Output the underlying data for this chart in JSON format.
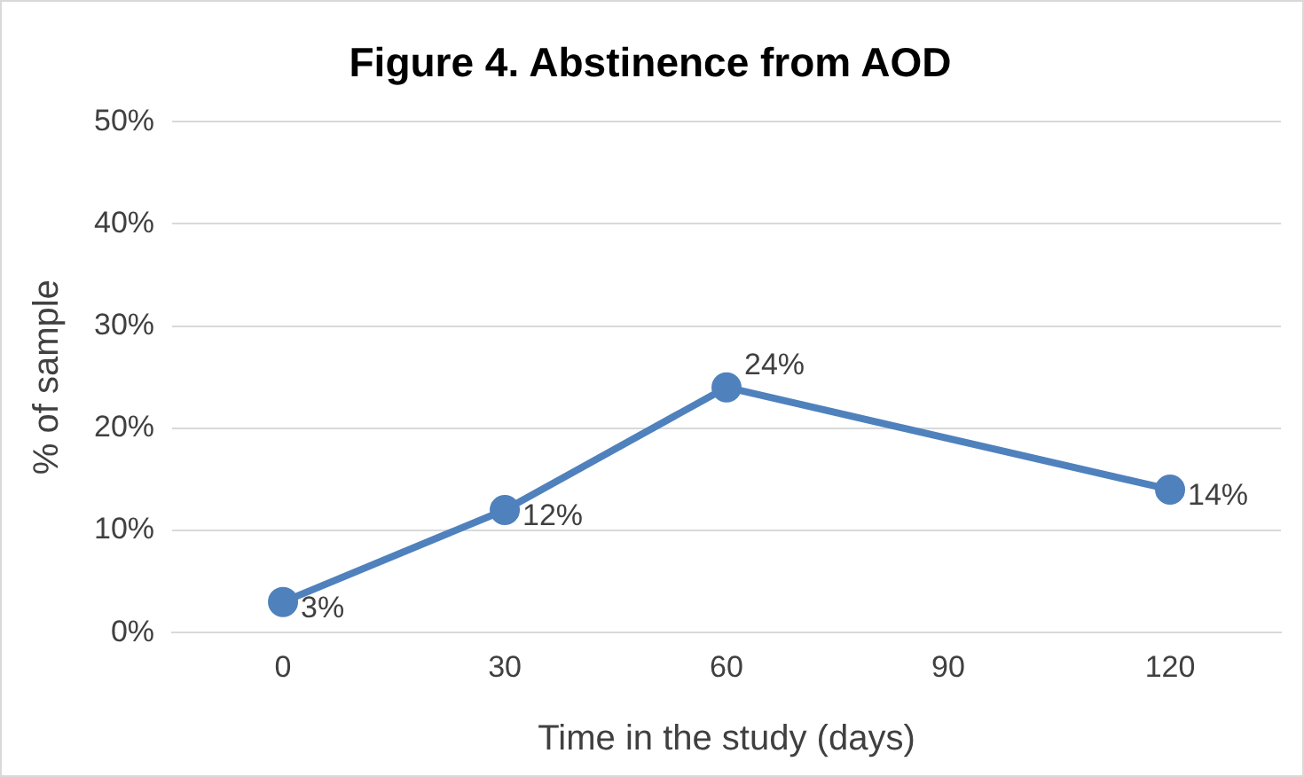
{
  "chart_data": {
    "type": "line",
    "title": "Figure 4. Abstinence from AOD",
    "xlabel": "Time in the study (days)",
    "ylabel": "% of sample",
    "x": [
      0,
      30,
      60,
      120
    ],
    "values": [
      3,
      12,
      24,
      14
    ],
    "value_labels": [
      "3%",
      "12%",
      "24%",
      "14%"
    ],
    "color": "#4f81bd",
    "xlim": [
      -15,
      135
    ],
    "xticks": [
      0,
      30,
      60,
      90,
      120
    ],
    "ylim": [
      0,
      50
    ],
    "yticks": [
      {
        "value": 0,
        "label": "0%"
      },
      {
        "value": 10,
        "label": "10%"
      },
      {
        "value": 20,
        "label": "20%"
      },
      {
        "value": 30,
        "label": "30%"
      },
      {
        "value": 40,
        "label": "40%"
      },
      {
        "value": 50,
        "label": "50%"
      }
    ],
    "grid": "y",
    "legend": false,
    "marker": "circle",
    "line_style": "solid"
  }
}
